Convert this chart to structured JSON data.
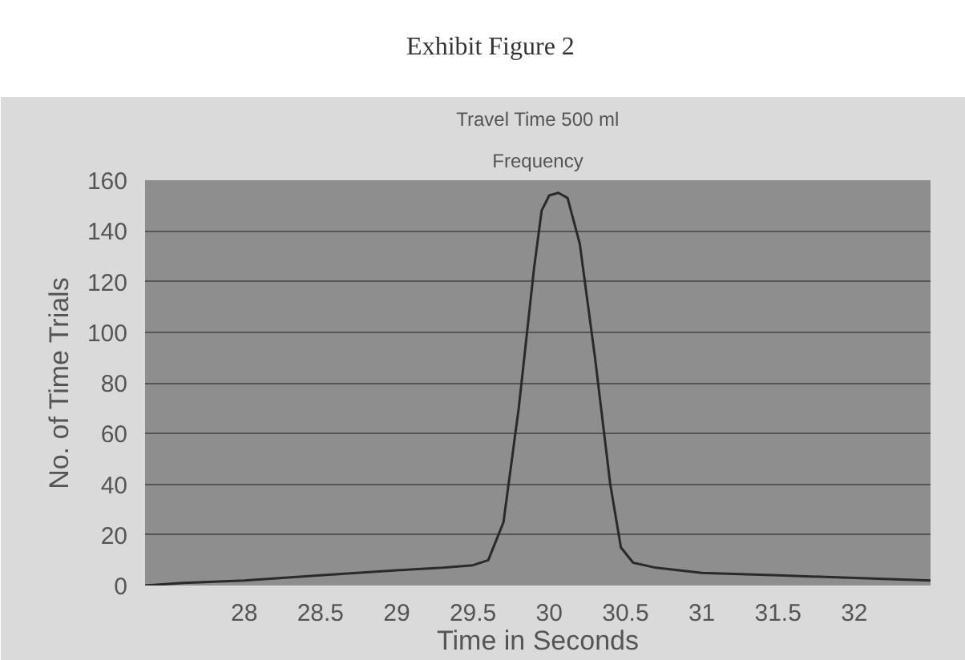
{
  "chart_data": {
    "type": "line",
    "title": "Travel Time 500 ml",
    "subtitle": "Frequency",
    "annotations": [
      "Exhibit Figure 2"
    ],
    "xlabel": "Time in Seconds",
    "ylabel": "No. of Time Trials",
    "x": [
      27.35,
      27.6,
      28,
      28.5,
      29,
      29.3,
      29.5,
      29.6,
      29.7,
      29.8,
      29.9,
      29.95,
      30.0,
      30.06,
      30.12,
      30.2,
      30.3,
      30.4,
      30.47,
      30.55,
      30.7,
      31,
      31.5,
      32,
      32.5
    ],
    "series": [
      {
        "color": "#2a2a2a",
        "values": [
          0,
          1,
          2,
          4,
          6,
          7,
          8,
          10,
          25,
          70,
          125,
          148,
          154,
          155,
          153,
          135,
          90,
          40,
          15,
          9,
          7,
          5,
          4,
          3,
          2
        ]
      }
    ],
    "xlim": [
      27.35,
      32.5
    ],
    "xticks": [
      28,
      28.5,
      29,
      29.5,
      30,
      30.5,
      31,
      31.5,
      32
    ],
    "ylim": [
      0,
      160
    ],
    "yticks": [
      0,
      20,
      40,
      60,
      80,
      100,
      120,
      140,
      160
    ],
    "grid": "y",
    "marker": "none",
    "line_style": "solid"
  }
}
